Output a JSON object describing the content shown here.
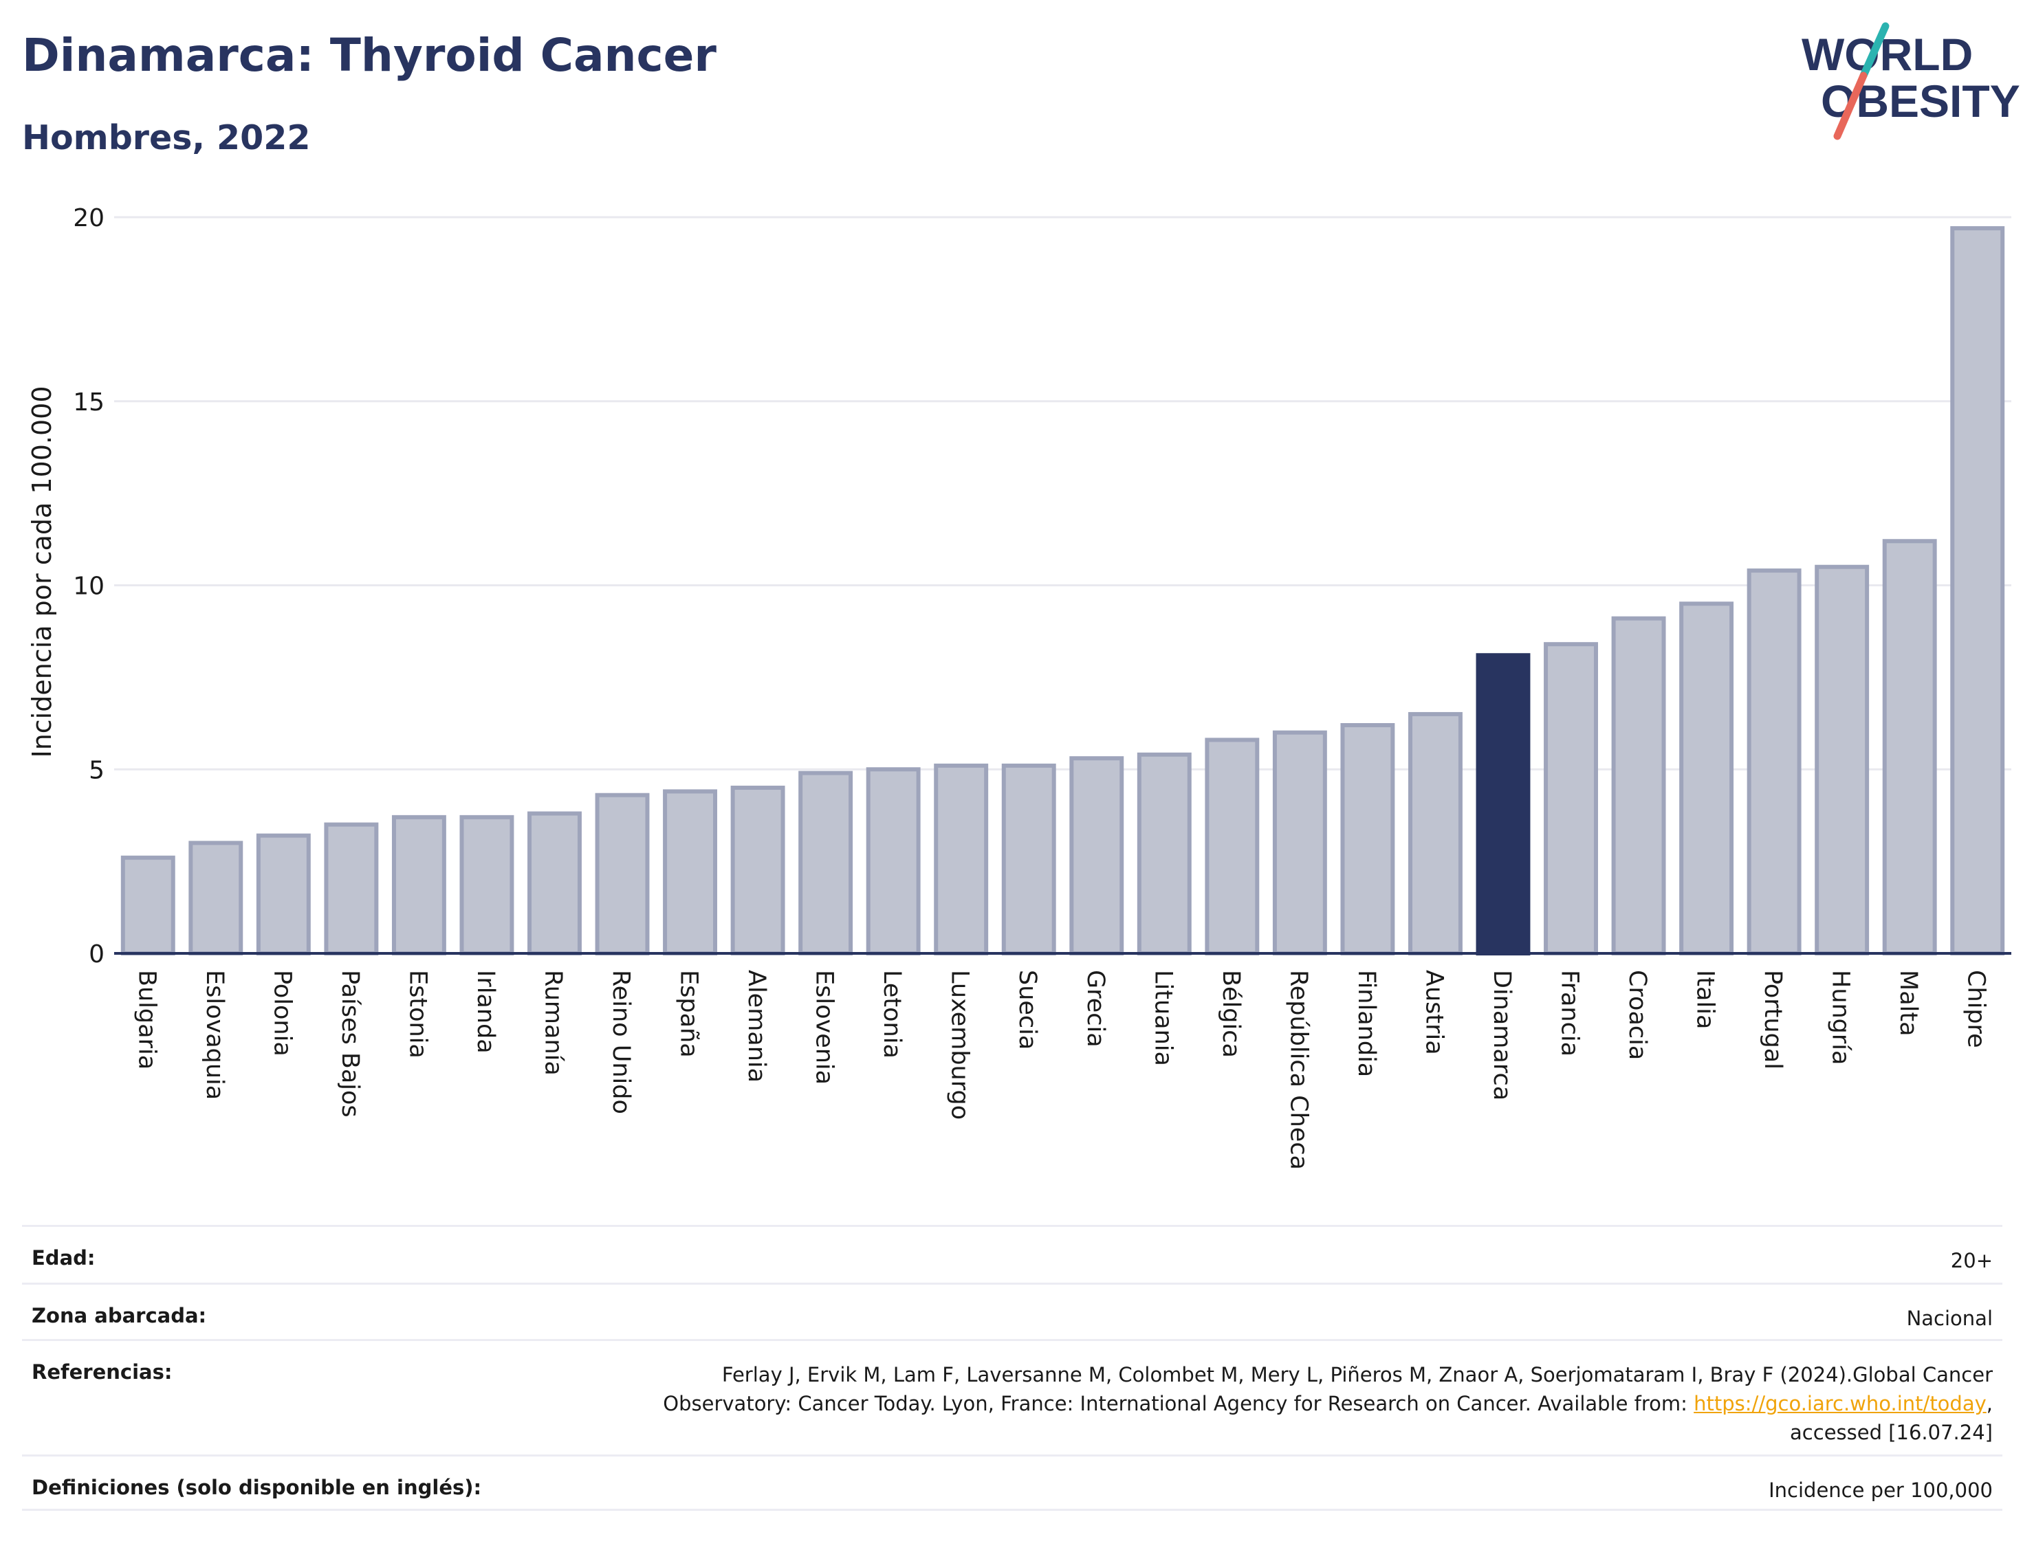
{
  "header": {
    "title": "Dinamarca: Thyroid Cancer",
    "subtitle": "Hombres, 2022"
  },
  "logo": {
    "line1": "WORLD",
    "line2": "OBESITY",
    "colors": {
      "text": "#283460",
      "slash_teal": "#2bb3b0",
      "slash_red": "#e8675a"
    }
  },
  "colors": {
    "highlight_bar": "#283460",
    "other_bar": "#bfc3d0",
    "other_bar_border": "#9ea4bb",
    "grid": "#e9e9ef",
    "axis": "#283460"
  },
  "chart_data": {
    "type": "bar",
    "title": "Dinamarca: Thyroid Cancer",
    "subtitle": "Hombres, 2022",
    "ylabel": "Incidencia por cada 100.000",
    "xlabel": "",
    "ylim": [
      0,
      20
    ],
    "yticks": [
      0,
      5,
      10,
      15,
      20
    ],
    "grid": true,
    "highlight": "Dinamarca",
    "categories": [
      "Bulgaria",
      "Eslovaquia",
      "Polonia",
      "Países Bajos",
      "Estonia",
      "Irlanda",
      "Rumanía",
      "Reino Unido",
      "España",
      "Alemania",
      "Eslovenia",
      "Letonia",
      "Luxemburgo",
      "Suecia",
      "Grecia",
      "Lituania",
      "Bélgica",
      "República Checa",
      "Finlandia",
      "Austria",
      "Dinamarca",
      "Francia",
      "Croacia",
      "Italia",
      "Portugal",
      "Hungría",
      "Malta",
      "Chipre"
    ],
    "values": [
      2.6,
      3.0,
      3.2,
      3.5,
      3.7,
      3.7,
      3.8,
      4.3,
      4.4,
      4.5,
      4.9,
      5.0,
      5.1,
      5.1,
      5.3,
      5.4,
      5.8,
      6.0,
      6.2,
      6.5,
      8.1,
      8.4,
      9.1,
      9.5,
      10.4,
      10.5,
      11.2,
      19.7
    ]
  },
  "meta": [
    {
      "label": "Edad:",
      "value": "20+"
    },
    {
      "label": "Zona abarcada:",
      "value": "Nacional"
    },
    {
      "label": "Referencias:",
      "value_line1": "Ferlay J, Ervik M, Lam F, Laversanne M, Colombet M, Mery L, Piñeros M, Znaor A, Soerjomataram I, Bray F (2024).Global Cancer",
      "value_line2_pre": "Observatory: Cancer Today. Lyon, France: International Agency for Research on Cancer. Available from: ",
      "link": "https://gco.iarc.who.int/today",
      "value_line2_post": ",",
      "value_line3": "accessed [16.07.24]"
    },
    {
      "label": "Definiciones (solo disponible en inglés):",
      "value": "Incidence per 100,000"
    }
  ]
}
